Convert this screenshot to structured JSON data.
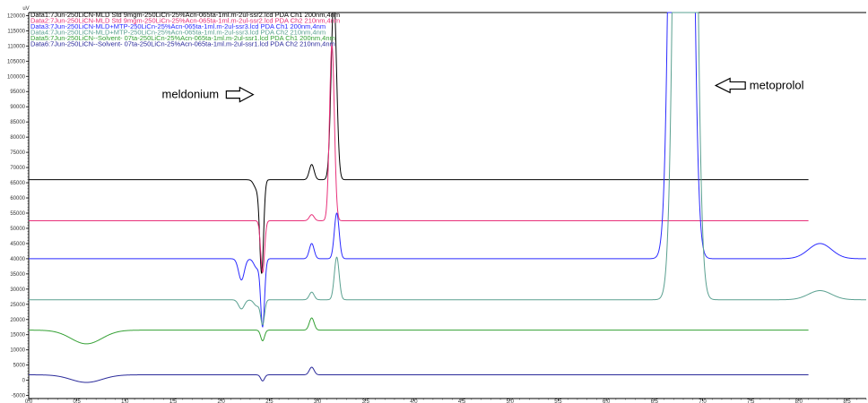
{
  "chart_data": {
    "type": "line",
    "y_unit": "uV",
    "xlim": [
      0,
      8.7
    ],
    "ylim": [
      -6000,
      121000
    ],
    "x_ticks": [
      "0.0",
      "0.5",
      "1.0",
      "1.5",
      "2.0",
      "2.5",
      "3.0",
      "3.5",
      "4.0",
      "4.5",
      "5.0",
      "5.5",
      "6.0",
      "6.5",
      "7.0",
      "7.5",
      "8.0",
      "8.5"
    ],
    "y_ticks": [
      "-5000",
      "0",
      "5000",
      "10000",
      "15000",
      "20000",
      "25000",
      "30000",
      "35000",
      "40000",
      "45000",
      "50000",
      "55000",
      "60000",
      "65000",
      "70000",
      "75000",
      "80000",
      "85000",
      "90000",
      "95000",
      "100000",
      "105000",
      "110000",
      "115000",
      "120000"
    ],
    "annotations": [
      {
        "text": "meldonium",
        "x": 1.68,
        "y": 94000,
        "arrow_direction": "right"
      },
      {
        "text": "metoprolol",
        "x": 7.77,
        "y": 97000,
        "arrow_direction": "left"
      }
    ],
    "series": [
      {
        "name": "Data1:7Jun-250LiCN-MLD Std 9mgm-250LiCn-25%Acn-065ta-1ml.m-2ul-ssr2.lcd PDA Ch1 200nm,4nm",
        "color": "#000000",
        "baseline": 66000,
        "x_end": 8.1,
        "peaks": [
          {
            "x": 2.42,
            "h": -30000,
            "w": 0.02
          },
          {
            "x": 2.37,
            "h": -3000,
            "w": 0.03
          },
          {
            "x": 2.94,
            "h": 5000,
            "w": 0.025
          },
          {
            "x": 3.17,
            "h": 60000,
            "w": 0.028
          }
        ]
      },
      {
        "name": "Data2:7Jun-250LiCN-MLD Std 9mgm-250LiCn-25%Acn-065ta-1ml.m-2ul-ssr2.lcd PDA Ch2 210nm,4nm",
        "color": "#e8317a",
        "baseline": 52500,
        "x_end": 8.1,
        "peaks": [
          {
            "x": 2.43,
            "h": -17000,
            "w": 0.02
          },
          {
            "x": 2.94,
            "h": 2000,
            "w": 0.025
          },
          {
            "x": 3.15,
            "h": 58000,
            "w": 0.025
          }
        ]
      },
      {
        "name": "Data3:7Jun-250LiCN-MLD+MTP-250LiCn-25%Acn-065ta-1ml.m-2ul-ssr3.lcd PDA Ch1 200nm,4nm",
        "color": "#2a2aff",
        "baseline": 40000,
        "x_end": 8.7,
        "peaks": [
          {
            "x": 2.21,
            "h": -7000,
            "w": 0.03
          },
          {
            "x": 2.37,
            "h": -3000,
            "w": 0.03
          },
          {
            "x": 2.43,
            "h": -22000,
            "w": 0.02
          },
          {
            "x": 2.94,
            "h": 5000,
            "w": 0.025
          },
          {
            "x": 3.2,
            "h": 15000,
            "w": 0.025
          },
          {
            "x": 6.78,
            "h": 700000,
            "w": 0.07
          },
          {
            "x": 8.22,
            "h": 5000,
            "w": 0.12
          }
        ]
      },
      {
        "name": "Data4:7Jun-250LiCN-MLD+MTP-250LiCn-25%Acn-065ta-1ml.m-2ul-ssr3.lcd PDA Ch2 210nm,4nm",
        "color": "#5aa090",
        "baseline": 26500,
        "x_end": 8.7,
        "peaks": [
          {
            "x": 2.21,
            "h": -3000,
            "w": 0.03
          },
          {
            "x": 2.37,
            "h": -2000,
            "w": 0.03
          },
          {
            "x": 2.43,
            "h": -8000,
            "w": 0.02
          },
          {
            "x": 2.94,
            "h": 2500,
            "w": 0.025
          },
          {
            "x": 3.2,
            "h": 14000,
            "w": 0.025
          },
          {
            "x": 6.82,
            "h": 650000,
            "w": 0.07
          },
          {
            "x": 8.22,
            "h": 3000,
            "w": 0.12
          }
        ]
      },
      {
        "name": "Data5:7Jun-250LiCN--Solvent- 07ta-250LiCn-25%Acn-065ta-1ml.m-2ul-ssr1.lcd PDA Ch1 200nm,4nm",
        "color": "#33a033",
        "baseline": 16500,
        "x_end": 8.1,
        "peaks": [
          {
            "x": 0.6,
            "h": -4500,
            "w": 0.16
          },
          {
            "x": 2.43,
            "h": -3500,
            "w": 0.02
          },
          {
            "x": 2.94,
            "h": 4000,
            "w": 0.025
          }
        ]
      },
      {
        "name": "Data6:7Jun-250LiCN--Solvent- 07ta-250LiCn-25%Acn-065ta-1ml.m-2ul-ssr1.lcd PDA Ch2 210nm,4nm",
        "color": "#2a2a9a",
        "baseline": 1800,
        "x_end": 8.1,
        "peaks": [
          {
            "x": 0.6,
            "h": -2500,
            "w": 0.16
          },
          {
            "x": 2.43,
            "h": -2000,
            "w": 0.02
          },
          {
            "x": 2.94,
            "h": 2500,
            "w": 0.025
          }
        ]
      }
    ]
  }
}
